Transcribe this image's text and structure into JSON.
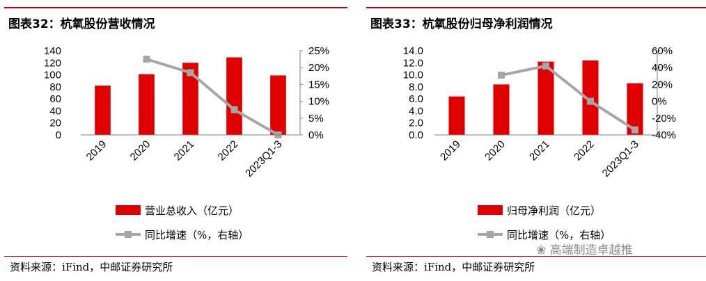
{
  "colors": {
    "bar": "#e00000",
    "line": "#a6a6a6",
    "rule": "#c00000"
  },
  "watermark": "高端制造卓越推",
  "panels": [
    {
      "title": "图表32：杭氧股份营收情况",
      "source": "资料来源：iFind，中邮证券研究所",
      "chart_data": {
        "type": "bar",
        "categories": [
          "2019",
          "2020",
          "2021",
          "2022",
          "2023Q1-3"
        ],
        "series": [
          {
            "name": "营业总收入（亿元）",
            "type": "bar",
            "axis": "left",
            "values": [
              82,
              101,
              120,
              129,
              99
            ]
          },
          {
            "name": "同比增速（%，右轴）",
            "type": "line",
            "axis": "right",
            "values": [
              null,
              22.5,
              18.5,
              7.5,
              0
            ]
          }
        ],
        "y_left": {
          "range": [
            0,
            140
          ],
          "ticks": [
            "0",
            "20",
            "40",
            "60",
            "80",
            "100",
            "120",
            "140"
          ]
        },
        "y_right": {
          "range": [
            0,
            25
          ],
          "ticks": [
            "0%",
            "5%",
            "10%",
            "15%",
            "20%",
            "25%"
          ]
        },
        "legend_position": "bottom"
      }
    },
    {
      "title": "图表33：杭氧股份归母净利润情况",
      "source": "资料来源：iFind，中邮证券研究所",
      "chart_data": {
        "type": "bar",
        "categories": [
          "2019",
          "2020",
          "2021",
          "2022",
          "2023Q1-3"
        ],
        "series": [
          {
            "name": "归母净利润（亿元）",
            "type": "bar",
            "axis": "left",
            "values": [
              6.4,
              8.4,
              12.2,
              12.4,
              8.6
            ]
          },
          {
            "name": "同比增速（%，右轴）",
            "type": "line",
            "axis": "right",
            "values": [
              null,
              31,
              42,
              0,
              -34
            ]
          }
        ],
        "y_left": {
          "range": [
            0,
            14
          ],
          "ticks": [
            "0.0",
            "2.0",
            "4.0",
            "6.0",
            "8.0",
            "10.0",
            "12.0",
            "14.0"
          ]
        },
        "y_right": {
          "range": [
            -40,
            60
          ],
          "ticks": [
            "-40%",
            "-20%",
            "0%",
            "20%",
            "40%",
            "60%"
          ]
        },
        "legend_position": "bottom"
      }
    }
  ]
}
